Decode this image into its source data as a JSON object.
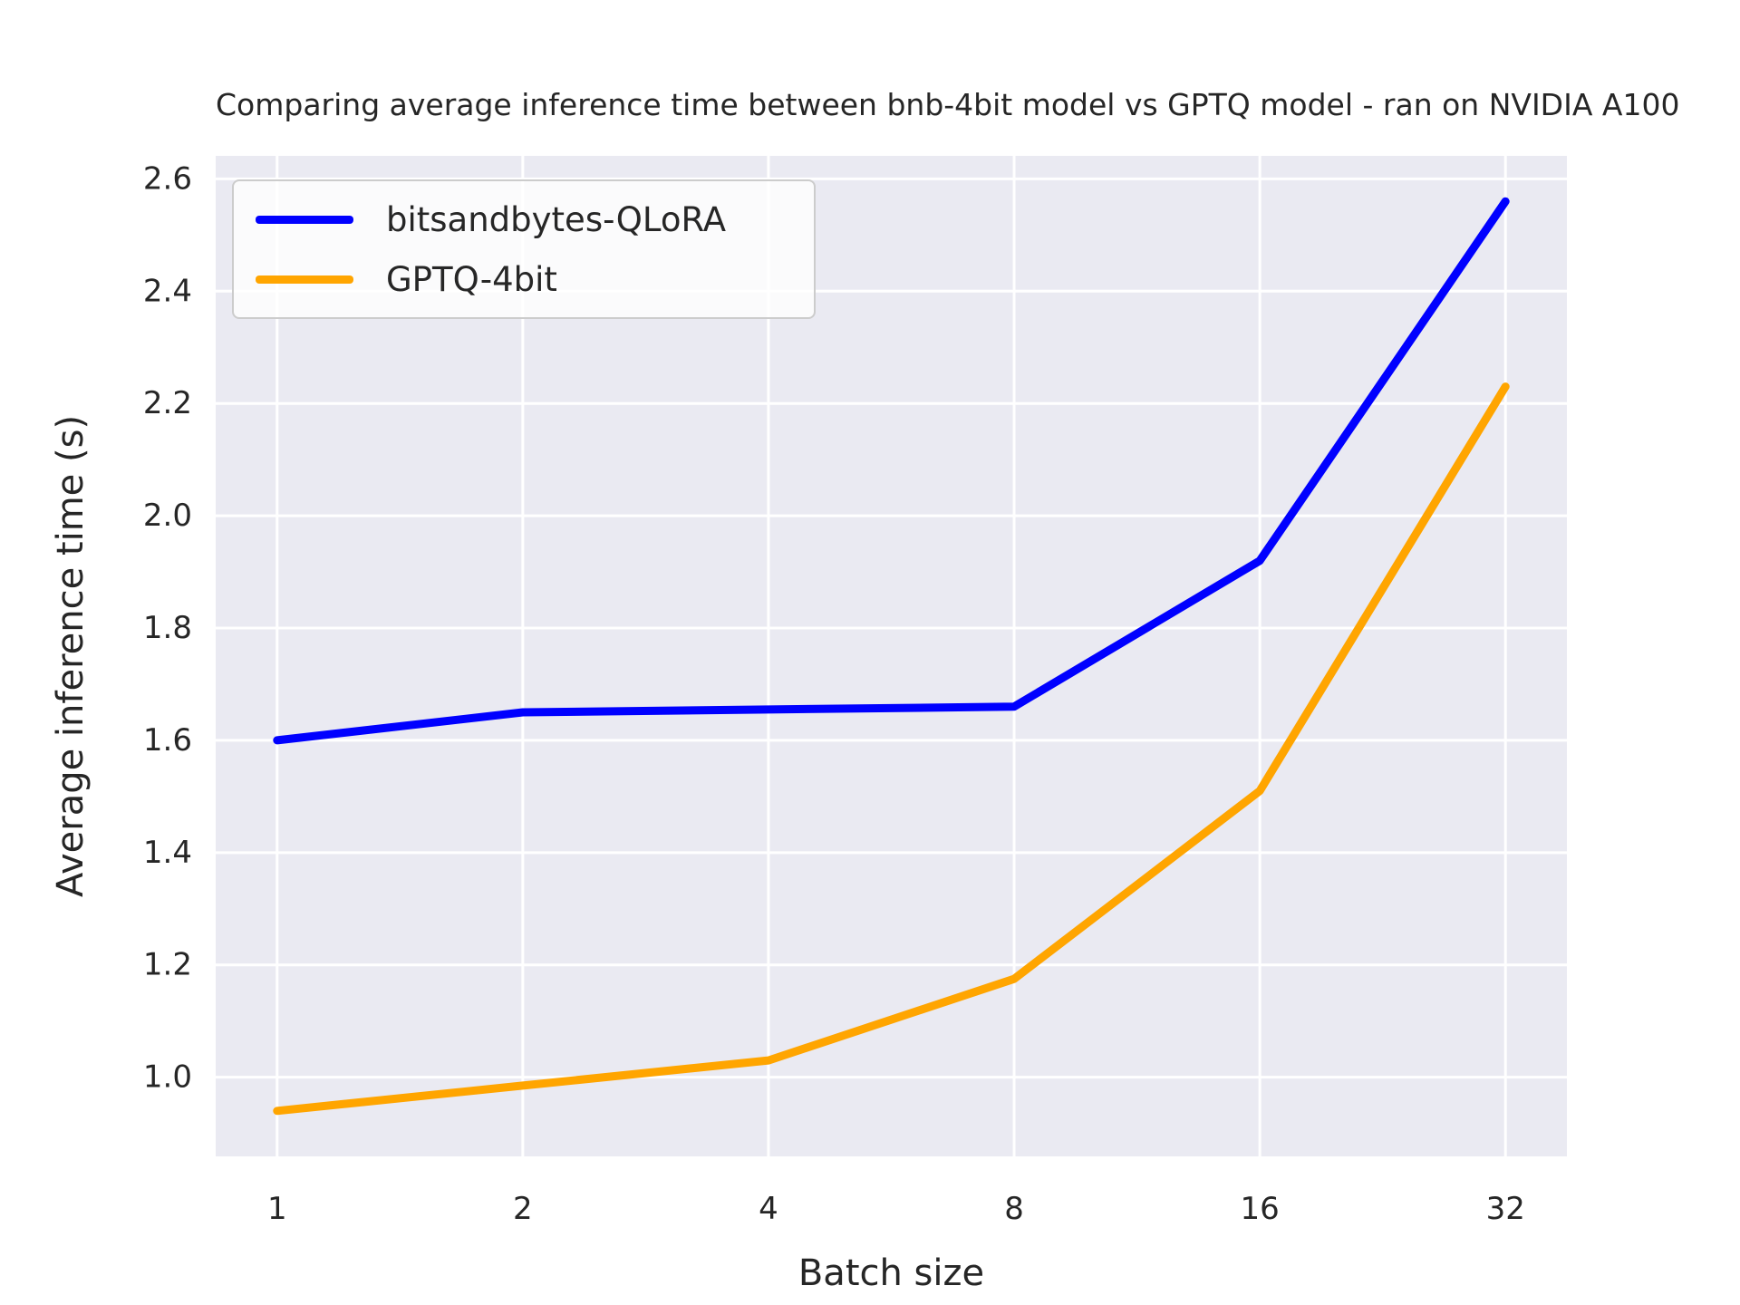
{
  "figure": {
    "background": "#ffffff"
  },
  "chart_data": {
    "type": "line",
    "title": "Comparing average inference time between bnb-4bit model vs GPTQ model - ran on NVIDIA A100",
    "xlabel": "Batch size",
    "ylabel": "Average inference time (s)",
    "x_scale": "log2",
    "x": [
      1,
      2,
      4,
      8,
      16,
      32
    ],
    "x_ticklabels": [
      "1",
      "2",
      "4",
      "8",
      "16",
      "32"
    ],
    "y_ticks": [
      1.0,
      1.2,
      1.4,
      1.6,
      1.8,
      2.0,
      2.2,
      2.4,
      2.6
    ],
    "ylim": [
      0.859,
      2.641
    ],
    "grid": true,
    "legend_position": "upper left",
    "plot_background": "#EAEAF2",
    "grid_color": "#ffffff",
    "text_color": "#262626",
    "series": [
      {
        "name": "bitsandbytes-QLoRA",
        "color": "#0000FF",
        "values": [
          1.6,
          1.65,
          1.655,
          1.66,
          1.92,
          2.56
        ]
      },
      {
        "name": "GPTQ-4bit",
        "color": "#FFA500",
        "values": [
          0.94,
          0.985,
          1.03,
          1.175,
          1.51,
          2.23
        ]
      }
    ]
  }
}
